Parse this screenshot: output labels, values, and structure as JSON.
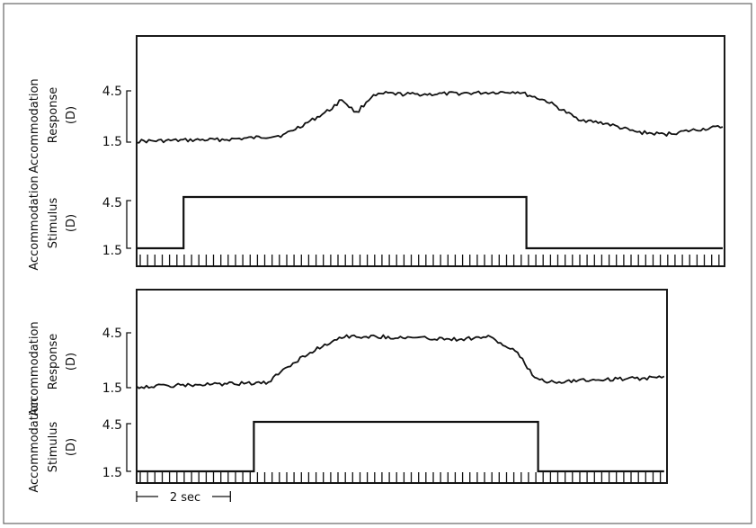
{
  "colors": {
    "ink": "#111111",
    "background": "#ffffff"
  },
  "labels": {
    "row1": "Accommodation",
    "response_row2": "Response",
    "stimulus_row2": "Stimulus",
    "unit": "(D)",
    "y_high": "4.5",
    "y_low": "1.5",
    "time_scale": "2 sec"
  },
  "chart_data": [
    {
      "type": "line",
      "panel": "top",
      "x_units": "sec",
      "time_scale_sec": 2,
      "ylim": [
        1.5,
        4.5
      ],
      "grid": false,
      "response": {
        "t": [
          0,
          1,
          2,
          3,
          4,
          5,
          6,
          6.6,
          7,
          7.5,
          8,
          8.5,
          9,
          10,
          11,
          12,
          13,
          14,
          15,
          15.5,
          16,
          17,
          18,
          19,
          20
        ],
        "y": [
          1.55,
          1.58,
          1.62,
          1.65,
          1.75,
          1.9,
          2.8,
          3.4,
          4.0,
          3.2,
          4.15,
          4.35,
          4.3,
          4.3,
          4.35,
          4.4,
          4.45,
          3.9,
          2.9,
          2.7,
          2.6,
          2.1,
          1.95,
          2.2,
          2.4
        ]
      },
      "stimulus": {
        "t": [
          0,
          1.6,
          1.6,
          13.3,
          13.3,
          20
        ],
        "y": [
          1.5,
          1.5,
          4.5,
          4.5,
          1.5,
          1.5
        ]
      }
    },
    {
      "type": "line",
      "panel": "bottom",
      "x_units": "sec",
      "time_scale_sec": 2,
      "ylim": [
        1.5,
        4.5
      ],
      "grid": false,
      "response": {
        "t": [
          0,
          1,
          2,
          3,
          4,
          4.5,
          5,
          5.5,
          6,
          7,
          8,
          9,
          10,
          11,
          12,
          13,
          13.5,
          14,
          15,
          16,
          17,
          18
        ],
        "y": [
          1.55,
          1.6,
          1.65,
          1.7,
          1.75,
          1.75,
          2.5,
          3.0,
          3.5,
          4.3,
          4.3,
          4.25,
          4.2,
          4.15,
          4.3,
          3.4,
          2.2,
          1.8,
          1.9,
          1.95,
          2.0,
          2.05
        ]
      },
      "stimulus": {
        "t": [
          0,
          4,
          4,
          13.7,
          13.7,
          18
        ],
        "y": [
          1.5,
          1.5,
          4.5,
          4.5,
          1.5,
          1.5
        ]
      }
    }
  ]
}
